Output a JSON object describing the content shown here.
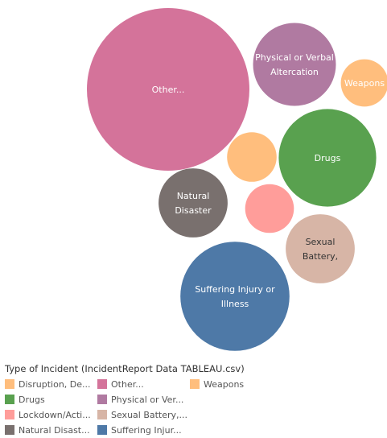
{
  "chart_data": {
    "type": "packed-bubble",
    "bubbles": [
      {
        "category": "Other...",
        "label": "Other...",
        "size": 100
      },
      {
        "category": "Suffering Injury or Illness",
        "label_lines": [
          "Suffering Injury or",
          "Illness"
        ],
        "size": 45
      },
      {
        "category": "Drugs",
        "label": "Drugs",
        "size": 36
      },
      {
        "category": "Physical or Verbal Altercation",
        "label_lines": [
          "Physical or Verbal",
          "Altercation"
        ],
        "size": 26
      },
      {
        "category": "Sexual Battery,",
        "label_lines": [
          "Sexual",
          "Battery,"
        ],
        "size": 18
      },
      {
        "category": "Natural Disaster",
        "label_lines": [
          "Natural",
          "Disaster"
        ],
        "size": 18
      },
      {
        "category": "Disruption, De...",
        "label": "",
        "size": 9.3
      },
      {
        "category": "Lockdown/Acti...",
        "label": "",
        "size": 9
      },
      {
        "category": "Weapons",
        "label": "Weapons",
        "size": 8.5
      }
    ]
  },
  "legend": {
    "title": "Type of Incident (IncidentReport Data TABLEAU.csv)",
    "items": [
      {
        "label": "Disruption, De...",
        "color": "#ffbe7d"
      },
      {
        "label": "Other...",
        "color": "#d4739a"
      },
      {
        "label": "Weapons",
        "color": "#ffbe7d"
      },
      {
        "label": "Drugs",
        "color": "#59a14f"
      },
      {
        "label": "Physical or Ver...",
        "color": "#b07aa1"
      },
      {
        "label": "",
        "color": ""
      },
      {
        "label": "Lockdown/Acti...",
        "color": "#ff9d9a"
      },
      {
        "label": "Sexual Battery,...",
        "color": "#d7b5a6"
      },
      {
        "label": "",
        "color": ""
      },
      {
        "label": "Natural Disast...",
        "color": "#79706e"
      },
      {
        "label": "Suffering Injur...",
        "color": "#4e79a7"
      },
      {
        "label": "",
        "color": ""
      }
    ]
  },
  "colors": {
    "Other...": "#d4739a",
    "Suffering Injury or Illness": "#4e79a7",
    "Drugs": "#59a14f",
    "Physical or Verbal Altercation": "#b07aa1",
    "Sexual Battery,": "#d7b5a6",
    "Natural Disaster": "#79706e",
    "Disruption, De...": "#ffbe7d",
    "Lockdown/Acti...": "#ff9d9a",
    "Weapons": "#ffbe7d"
  }
}
